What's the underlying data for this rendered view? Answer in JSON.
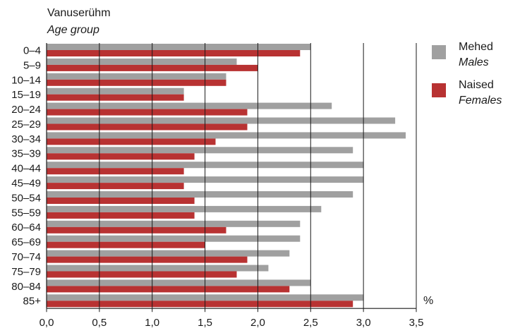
{
  "chart_data": {
    "type": "bar",
    "orientation": "horizontal",
    "title_lines": [
      "Vanuserühm",
      "Age group"
    ],
    "unit_label": "%",
    "categories": [
      "0–4",
      "5–9",
      "10–14",
      "15–19",
      "20–24",
      "25–29",
      "30–34",
      "35–39",
      "40–44",
      "45–49",
      "50–54",
      "55–59",
      "60–64",
      "65–69",
      "70–74",
      "75–79",
      "80–84",
      "85+"
    ],
    "series": [
      {
        "name": "Mehed",
        "name_en": "Males",
        "color": "#a0a0a0",
        "values": [
          2.5,
          1.8,
          1.7,
          1.3,
          2.7,
          3.3,
          3.4,
          2.9,
          3.0,
          3.0,
          2.9,
          2.6,
          2.4,
          2.4,
          2.3,
          2.1,
          2.5,
          3.0
        ]
      },
      {
        "name": "Naised",
        "name_en": "Females",
        "color": "#b83232",
        "values": [
          2.4,
          2.0,
          1.7,
          1.3,
          1.9,
          1.9,
          1.6,
          1.4,
          1.3,
          1.3,
          1.4,
          1.4,
          1.7,
          1.5,
          1.9,
          1.8,
          2.3,
          2.9
        ]
      }
    ],
    "xlim": [
      0,
      3.5
    ],
    "xticks": [
      "0,0",
      "0,5",
      "1,0",
      "1,5",
      "2,0",
      "2,5",
      "3,0",
      "3,5"
    ],
    "grid": "vertical",
    "legend_position": "right"
  }
}
